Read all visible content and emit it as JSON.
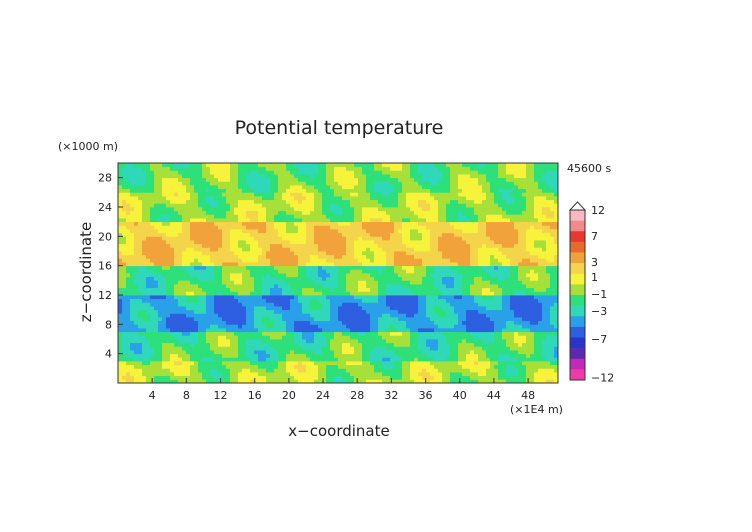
{
  "chart_data": {
    "type": "heatmap",
    "title": "Potential temperature",
    "xlabel": "x−coordinate",
    "ylabel": "z−coordinate",
    "x_unit": "(×1E4 m)",
    "y_unit": "(×1000 m)",
    "time_label": "45600 s",
    "xlim": [
      0,
      51.5
    ],
    "ylim": [
      0,
      30
    ],
    "x_ticks": [
      "4",
      "8",
      "12",
      "16",
      "20",
      "24",
      "28",
      "32",
      "36",
      "40",
      "44",
      "48"
    ],
    "y_ticks": [
      "4",
      "8",
      "12",
      "16",
      "20",
      "24",
      "28"
    ],
    "bands": [
      {
        "z_from": 0,
        "z_to": 3,
        "value": 0.5
      },
      {
        "z_from": 3,
        "z_to": 7,
        "value": -0.5
      },
      {
        "z_from": 7,
        "z_to": 12,
        "value": -2.5
      },
      {
        "z_from": 12,
        "z_to": 16,
        "value": -0.5
      },
      {
        "z_from": 16,
        "z_to": 22,
        "value": 2.5
      },
      {
        "z_from": 22,
        "z_to": 26,
        "value": 0.5
      },
      {
        "z_from": 26,
        "z_to": 30,
        "value": 0
      }
    ],
    "colorbar": {
      "labels": [
        "12",
        "7",
        "3",
        "1",
        "−1",
        "−3",
        "−7",
        "−12"
      ],
      "colors": [
        "#f7b7c3",
        "#f08a8a",
        "#e53a30",
        "#e86a2a",
        "#f2a23a",
        "#f4d44a",
        "#f7f23a",
        "#a8e03a",
        "#2ee07a",
        "#2ed8b8",
        "#2aa0e8",
        "#2d5fe0",
        "#2a34c8",
        "#5a2ab0",
        "#c02ab8",
        "#f03aa8"
      ]
    }
  }
}
